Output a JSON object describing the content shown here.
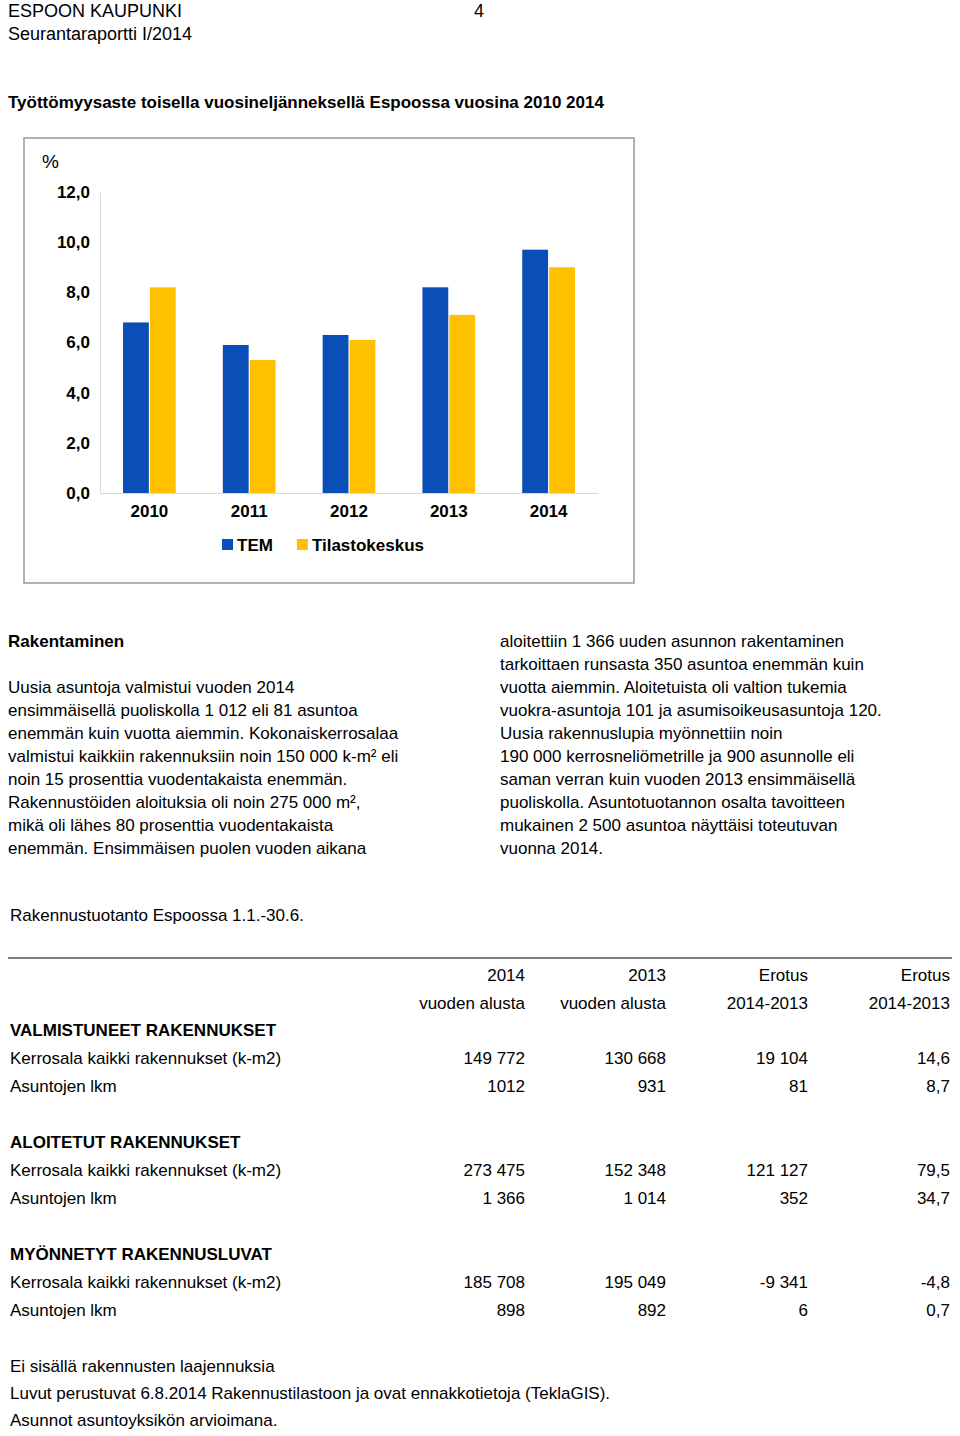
{
  "header": {
    "org": "ESPOON KAUPUNKI",
    "page": "4",
    "report": "Seurantaraportti I/2014"
  },
  "chart_data": {
    "type": "bar",
    "title": "Työttömyysaste toisella vuosineljänneksellä Espoossa vuosina 2010 2014",
    "y_label": "%",
    "categories": [
      "2010",
      "2011",
      "2012",
      "2013",
      "2014"
    ],
    "series": [
      {
        "name": "TEM",
        "color": "#0a4fb8",
        "values": [
          6.8,
          5.9,
          6.3,
          8.2,
          9.7
        ]
      },
      {
        "name": "Tilastokeskus",
        "color": "#ffc000",
        "values": [
          8.2,
          5.3,
          6.1,
          7.1,
          9.0
        ]
      }
    ],
    "ylim": [
      0,
      12
    ],
    "yticks": [
      {
        "value": 0,
        "label": "0,0"
      },
      {
        "value": 2,
        "label": "2,0"
      },
      {
        "value": 4,
        "label": "4,0"
      },
      {
        "value": 6,
        "label": "6,0"
      },
      {
        "value": 8,
        "label": "8,0"
      },
      {
        "value": 10,
        "label": "10,0"
      },
      {
        "value": 12,
        "label": "12,0"
      }
    ],
    "grid": false,
    "legend": "bottom"
  },
  "text": {
    "heading": "Rakentaminen",
    "left_lines": [
      "Uusia asuntoja valmistui vuoden 2014",
      "ensimmäisellä puoliskolla 1 012 eli 81 asuntoa",
      "enemmän kuin vuotta aiemmin. Kokonaiskerrosalaa",
      "valmistui kaikkiin rakennuksiin noin 150 000 k-m² eli",
      "noin 15 prosenttia vuodentakaista enemmän.",
      "Rakennustöiden aloituksia oli noin 275 000 m²,",
      "mikä oli lähes 80 prosenttia vuodentakaista",
      "enemmän. Ensimmäisen puolen vuoden aikana"
    ],
    "right_lines": [
      "aloitettiin 1 366 uuden asunnon rakentaminen",
      "tarkoittaen runsasta 350 asuntoa enemmän kuin",
      "vuotta aiemmin. Aloitetuista oli valtion tukemia",
      "vuokra-asuntoja 101 ja asumisoikeusasuntoja 120.",
      "Uusia rakennuslupia myönnettiin noin",
      "190 000 kerrosneliömetrille ja 900 asunnolle eli",
      "saman verran kuin vuoden 2013 ensimmäisellä",
      "puoliskolla. Asuntotuotannon osalta tavoitteen",
      "mukainen 2 500 asuntoa näyttäisi toteutuvan",
      "vuonna 2014."
    ]
  },
  "table": {
    "title": "Rakennustuotanto Espoossa 1.1.-30.6.",
    "header": [
      [
        "2014",
        "2013",
        "Erotus",
        "Erotus"
      ],
      [
        "vuoden alusta",
        "vuoden alusta",
        "2014-2013",
        "2014-2013"
      ]
    ],
    "sections": [
      {
        "title": "VALMISTUNEET RAKENNUKSET",
        "rows": [
          [
            "Kerrosala kaikki rakennukset (k-m2)",
            "149 772",
            "130 668",
            "19 104",
            "14,6"
          ],
          [
            "Asuntojen lkm",
            "1012",
            "931",
            "81",
            "8,7"
          ]
        ]
      },
      {
        "title": "ALOITETUT RAKENNUKSET",
        "rows": [
          [
            "Kerrosala kaikki rakennukset (k-m2)",
            "273 475",
            "152 348",
            "121 127",
            "79,5"
          ],
          [
            "Asuntojen lkm",
            "1 366",
            "1 014",
            "352",
            "34,7"
          ]
        ]
      },
      {
        "title": "MYÖNNETYT RAKENNUSLUVAT",
        "rows": [
          [
            "Kerrosala kaikki rakennukset (k-m2)",
            "185 708",
            "195 049",
            "-9 341",
            "-4,8"
          ],
          [
            "Asuntojen lkm",
            "898",
            "892",
            "6",
            "0,7"
          ]
        ]
      }
    ],
    "notes": [
      "Ei sisällä rakennusten laajennuksia",
      "Luvut perustuvat 6.8.2014 Rakennustilastoon ja ovat ennakkotietoja (TeklaGIS).",
      "Asunnot asuntoyksikön arvioimana."
    ]
  }
}
